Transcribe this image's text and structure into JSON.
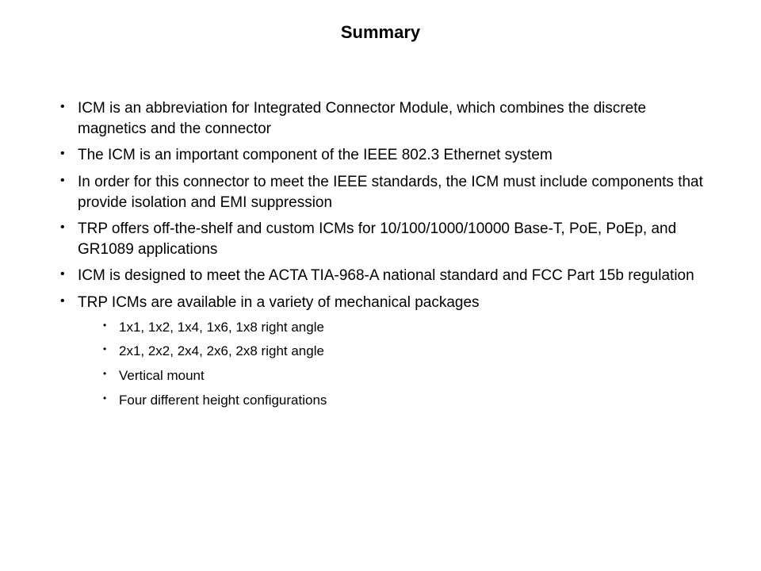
{
  "title": "Summary",
  "bullets": {
    "b0": "ICM is an abbreviation for Integrated Connector Module, which combines the discrete magnetics and the connector",
    "b1": "The ICM is an important component of the IEEE 802.3 Ethernet system",
    "b2": "In order for this connector to meet the IEEE standards, the ICM must include components that provide isolation and EMI suppression",
    "b3": "TRP offers off-the-shelf and custom ICMs for 10/100/1000/10000 Base-T, PoE, PoEp, and GR1089 applications",
    "b4": "ICM is designed to meet the ACTA TIA-968-A national standard and FCC Part 15b regulation",
    "b5": "TRP ICMs are available in a variety of mechanical packages"
  },
  "sub_bullets": {
    "s0": "1x1, 1x2, 1x4, 1x6, 1x8 right angle",
    "s1": "2x1, 2x2, 2x4, 2x6, 2x8 right angle",
    "s2": "Vertical mount",
    "s3": "Four different height configurations"
  },
  "style": {
    "background_color": "#ffffff",
    "text_color": "#000000",
    "title_fontsize": 22,
    "title_fontweight": "bold",
    "bullet_fontsize": 19,
    "sub_bullet_fontsize": 17,
    "font_family": "Verdana, Geneva, sans-serif"
  }
}
